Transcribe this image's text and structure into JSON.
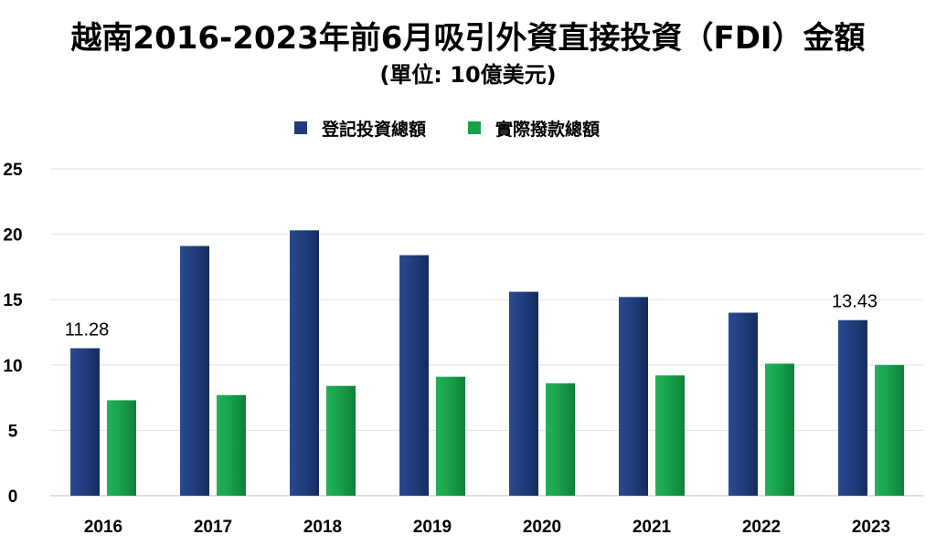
{
  "chart_data": {
    "type": "bar",
    "title": "越南2016-2023年前6月吸引外資直接投資（FDI）金額",
    "subtitle": "(單位: 10億美元)",
    "xlabel": "",
    "ylabel": "",
    "categories": [
      "2016",
      "2017",
      "2018",
      "2019",
      "2020",
      "2021",
      "2022",
      "2023"
    ],
    "series": [
      {
        "name": "登記投資總額",
        "color": "#1f3c7c",
        "values": [
          11.28,
          19.1,
          20.3,
          18.4,
          15.6,
          15.2,
          14.0,
          13.43
        ]
      },
      {
        "name": "實際撥款總額",
        "color": "#16a04a",
        "values": [
          7.3,
          7.7,
          8.4,
          9.1,
          8.6,
          9.2,
          10.1,
          10.0
        ]
      }
    ],
    "data_labels": [
      {
        "category": "2016",
        "series": "登記投資總額",
        "text": "11.28"
      },
      {
        "category": "2023",
        "series": "登記投資總額",
        "text": "13.43"
      }
    ],
    "ylim": [
      0,
      25
    ],
    "yticks": [
      "0",
      "5",
      "10",
      "15",
      "20",
      "25"
    ],
    "grid": true,
    "legend": "top-center"
  }
}
